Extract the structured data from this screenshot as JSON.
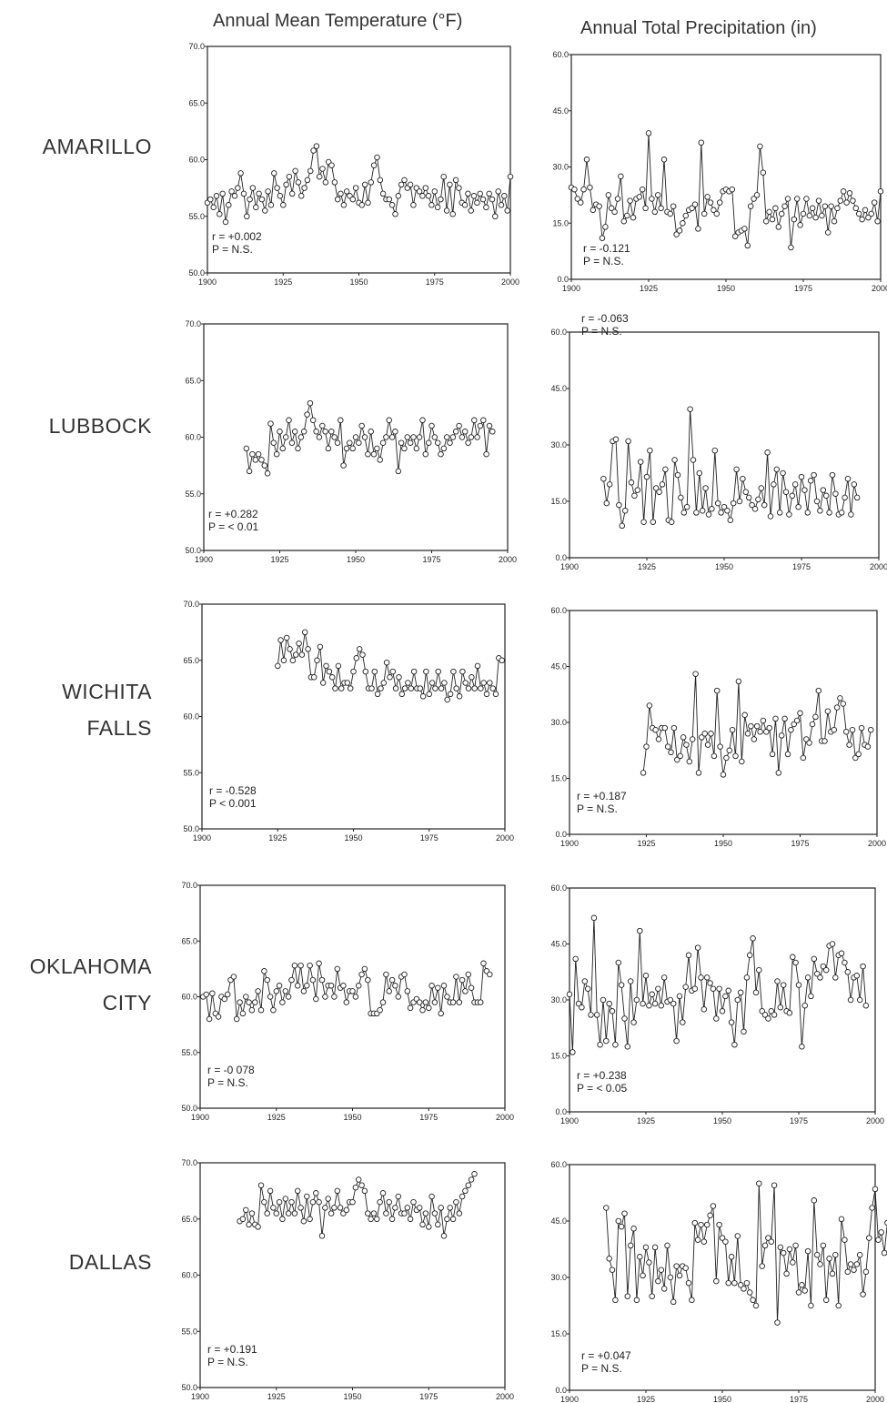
{
  "columns": {
    "temperature": "Annual  Mean Temperature  (°F)",
    "precipitation": "Annual  Total  Precipitation  (in)"
  },
  "cities": [
    "AMARILLO",
    "LUBBOCK",
    "WICHITA FALLS",
    "OKLAHOMA CITY",
    "DALLAS"
  ],
  "x_ticks": [
    "1900",
    "1925",
    "1950",
    "1975",
    "2000"
  ],
  "temp_yticks": [
    "70.0",
    "65.0",
    "60.0",
    "55.0",
    "50.0"
  ],
  "precip_yticks": [
    "60.0",
    "45.0",
    "30.0",
    "15.0",
    "0.0"
  ],
  "chart_data": [
    {
      "type": "line",
      "city": "AMARILLO",
      "variable": "temperature",
      "xlim": [
        1900,
        2000
      ],
      "ylim": [
        50,
        70
      ],
      "x_start": 1900,
      "stat_r": "r = +0.002",
      "stat_p": "P = N.S.",
      "values": [
        56.2,
        56.5,
        55.8,
        56.8,
        55.2,
        57.0,
        54.5,
        56.0,
        57.2,
        56.8,
        57.5,
        58.8,
        57.0,
        55.0,
        56.5,
        57.5,
        55.8,
        57.0,
        56.5,
        55.5,
        57.2,
        56.0,
        58.8,
        57.5,
        56.8,
        56.0,
        57.8,
        58.5,
        57.0,
        59.0,
        58.0,
        56.8,
        57.5,
        58.2,
        59.0,
        60.8,
        61.2,
        58.5,
        59.2,
        58.0,
        59.8,
        59.5,
        58.0,
        56.5,
        57.0,
        56.0,
        57.2,
        56.8,
        56.5,
        57.5,
        56.2,
        56.0,
        57.8,
        56.2,
        58.0,
        59.5,
        60.2,
        58.2,
        57.0,
        56.5,
        56.5,
        56.0,
        55.2,
        56.8,
        57.8,
        58.2,
        57.5,
        57.8,
        56.0,
        57.5,
        57.2,
        56.8,
        57.5,
        56.8,
        56.0,
        57.2,
        55.8,
        56.5,
        58.5,
        55.5,
        57.8,
        55.2,
        58.2,
        57.5,
        56.2,
        56.0,
        57.0,
        55.5,
        56.8,
        56.2,
        57.0,
        56.5,
        55.8,
        57.0,
        56.5,
        55.0,
        57.2,
        56.0,
        56.8,
        55.5,
        58.5
      ]
    },
    {
      "type": "line",
      "city": "AMARILLO",
      "variable": "precipitation",
      "xlim": [
        1900,
        2000
      ],
      "ylim": [
        0,
        60
      ],
      "x_start": 1900,
      "stat_r": "r = -0.121",
      "stat_p": "P = N.S.",
      "values": [
        24.5,
        24.0,
        21.5,
        20.5,
        24.0,
        32.0,
        24.5,
        18.5,
        20.0,
        19.5,
        11.0,
        14.0,
        22.5,
        19.0,
        18.0,
        21.5,
        27.5,
        15.5,
        17.0,
        21.0,
        16.5,
        21.5,
        22.0,
        24.0,
        19.0,
        39.0,
        21.5,
        18.0,
        22.5,
        19.0,
        32.0,
        18.0,
        17.5,
        19.5,
        12.0,
        13.0,
        15.0,
        17.0,
        18.5,
        19.0,
        20.0,
        13.5,
        36.5,
        17.5,
        22.0,
        20.5,
        18.5,
        17.5,
        20.5,
        23.5,
        24.0,
        23.5,
        24.0,
        11.5,
        12.5,
        13.0,
        13.5,
        9.0,
        19.5,
        21.5,
        22.5,
        35.5,
        28.5,
        15.5,
        18.0,
        16.0,
        19.0,
        14.0,
        17.5,
        19.5,
        21.5,
        8.5,
        16.0,
        21.5,
        14.5,
        17.5,
        21.5,
        17.0,
        19.0,
        16.5,
        21.0,
        17.0,
        19.5,
        12.5,
        19.5,
        15.5,
        19.0,
        21.0,
        23.5,
        20.5,
        23.0,
        21.0,
        19.0,
        17.5,
        16.0,
        18.5,
        16.5,
        17.5,
        20.5,
        15.5,
        23.5
      ]
    },
    {
      "type": "line",
      "city": "LUBBOCK",
      "variable": "temperature",
      "xlim": [
        1900,
        2000
      ],
      "ylim": [
        50,
        70
      ],
      "x_start": 1914,
      "stat_r": "r = +0.282",
      "stat_p": "P = < 0.01",
      "values": [
        59.0,
        57.0,
        58.5,
        58.0,
        58.5,
        58.0,
        57.5,
        56.8,
        61.2,
        59.5,
        58.5,
        60.5,
        59.0,
        60.0,
        61.5,
        59.5,
        60.5,
        59.0,
        60.0,
        60.5,
        62.0,
        63.0,
        61.5,
        60.5,
        60.0,
        61.0,
        60.5,
        59.0,
        60.5,
        60.0,
        59.5,
        61.5,
        57.5,
        59.0,
        59.5,
        59.0,
        60.0,
        59.5,
        61.0,
        60.0,
        58.5,
        60.5,
        58.5,
        59.0,
        58.0,
        59.5,
        60.0,
        61.5,
        60.0,
        60.5,
        57.0,
        59.5,
        59.0,
        60.0,
        59.5,
        60.0,
        59.0,
        60.0,
        61.5,
        58.5,
        59.5,
        61.0,
        60.0,
        59.5,
        58.5,
        59.0,
        60.0,
        59.5,
        60.0,
        60.5,
        61.0,
        60.0,
        60.5,
        59.5,
        60.0,
        61.5,
        60.0,
        61.0,
        61.5,
        58.5,
        61.0,
        60.5
      ]
    },
    {
      "type": "line",
      "city": "LUBBOCK",
      "variable": "precipitation",
      "xlim": [
        1900,
        2000
      ],
      "ylim": [
        0,
        60
      ],
      "x_start": 1911,
      "stat_r": "r = -0.063",
      "stat_p": "P = N.S.",
      "values": [
        21.0,
        14.5,
        19.5,
        31.0,
        31.5,
        14.0,
        8.5,
        12.5,
        31.0,
        20.0,
        16.5,
        18.0,
        25.5,
        9.5,
        21.5,
        28.5,
        9.5,
        18.5,
        17.5,
        19.5,
        23.5,
        10.0,
        9.5,
        26.0,
        22.0,
        16.0,
        12.0,
        13.5,
        39.5,
        26.0,
        12.0,
        22.5,
        12.5,
        18.5,
        11.5,
        13.0,
        28.5,
        14.5,
        12.0,
        13.5,
        12.5,
        10.0,
        14.5,
        23.5,
        15.0,
        21.0,
        17.5,
        16.0,
        14.0,
        13.0,
        15.5,
        18.5,
        14.0,
        28.0,
        11.0,
        19.5,
        23.5,
        12.0,
        22.5,
        17.5,
        11.5,
        16.5,
        19.5,
        13.5,
        21.5,
        18.0,
        12.0,
        20.5,
        22.0,
        15.0,
        12.5,
        18.0,
        16.5,
        12.0,
        22.0,
        17.0,
        11.5,
        12.0,
        16.0,
        21.0,
        11.5,
        19.5,
        16.0
      ]
    },
    {
      "type": "line",
      "city": "WICHITA FALLS",
      "variable": "temperature",
      "xlim": [
        1900,
        2000
      ],
      "ylim": [
        50,
        70
      ],
      "x_start": 1925,
      "stat_r": "r = -0.528",
      "stat_p": "P < 0.001",
      "values": [
        64.5,
        66.8,
        65.0,
        67.0,
        66.0,
        65.0,
        65.5,
        66.5,
        65.5,
        67.5,
        66.0,
        63.5,
        63.5,
        65.0,
        66.2,
        63.0,
        64.5,
        64.0,
        63.5,
        62.5,
        64.5,
        62.5,
        63.0,
        63.0,
        62.5,
        64.0,
        65.2,
        66.0,
        65.5,
        64.0,
        62.5,
        62.5,
        64.0,
        62.0,
        62.5,
        63.0,
        64.8,
        63.5,
        64.0,
        62.5,
        63.5,
        62.0,
        62.5,
        63.0,
        62.5,
        64.0,
        62.5,
        62.5,
        61.8,
        64.0,
        62.0,
        63.0,
        62.5,
        64.0,
        62.5,
        63.0,
        61.5,
        62.0,
        64.0,
        62.5,
        61.8,
        64.0,
        63.0,
        62.5,
        63.5,
        62.5,
        64.5,
        62.5,
        63.0,
        62.0,
        63.0,
        62.5,
        62.0,
        65.2,
        65.0
      ]
    },
    {
      "type": "line",
      "city": "WICHITA FALLS",
      "variable": "precipitation",
      "xlim": [
        1900,
        2000
      ],
      "ylim": [
        0,
        60
      ],
      "x_start": 1924,
      "stat_r": "r = +0.187",
      "stat_p": "P = N.S.",
      "values": [
        16.5,
        23.5,
        34.5,
        28.5,
        28.0,
        25.5,
        28.5,
        28.5,
        23.5,
        22.0,
        28.5,
        20.0,
        21.0,
        26.0,
        24.0,
        19.5,
        25.5,
        43.0,
        16.5,
        26.0,
        27.0,
        24.0,
        27.0,
        21.0,
        38.5,
        23.5,
        16.0,
        20.5,
        22.5,
        28.0,
        21.0,
        41.0,
        19.5,
        32.0,
        27.0,
        29.0,
        25.5,
        29.0,
        27.5,
        30.5,
        27.5,
        28.5,
        21.5,
        31.0,
        16.5,
        26.5,
        31.0,
        21.5,
        28.0,
        29.5,
        30.5,
        32.5,
        20.5,
        25.5,
        24.5,
        29.5,
        31.5,
        38.5,
        25.0,
        25.0,
        33.0,
        27.5,
        28.0,
        34.0,
        36.5,
        35.0,
        27.5,
        24.0,
        28.0,
        20.5,
        21.5,
        28.5,
        24.0,
        23.5,
        28.0
      ]
    },
    {
      "type": "line",
      "city": "OKLAHOMA CITY",
      "variable": "temperature",
      "xlim": [
        1900,
        2000
      ],
      "ylim": [
        50,
        70
      ],
      "x_start": 1901,
      "stat_r": "r = -0 078",
      "stat_p": "P = N.S.",
      "values": [
        60.0,
        60.2,
        58.0,
        60.3,
        58.5,
        58.2,
        60.0,
        59.8,
        60.2,
        61.5,
        61.8,
        58.0,
        59.5,
        58.5,
        60.0,
        59.5,
        58.8,
        59.5,
        60.5,
        58.8,
        62.3,
        61.5,
        60.0,
        58.8,
        60.5,
        61.0,
        59.5,
        60.5,
        60.0,
        61.5,
        62.8,
        61.0,
        62.8,
        60.5,
        61.0,
        62.8,
        61.5,
        59.8,
        63.0,
        61.5,
        60.0,
        61.0,
        61.0,
        60.0,
        62.5,
        60.8,
        61.0,
        59.5,
        60.5,
        60.5,
        60.0,
        61.0,
        62.0,
        62.5,
        61.5,
        58.5,
        58.5,
        58.5,
        58.8,
        59.5,
        62.0,
        60.5,
        61.5,
        61.0,
        60.0,
        61.8,
        62.0,
        60.5,
        59.0,
        59.5,
        59.8,
        59.5,
        58.8,
        59.5,
        59.0,
        61.0,
        59.5,
        60.8,
        58.5,
        61.0,
        60.0,
        59.5,
        59.5,
        61.8,
        59.5,
        61.5,
        60.5,
        62.0,
        60.8,
        59.5,
        59.5,
        59.5,
        63.0,
        62.3,
        62.0
      ]
    },
    {
      "type": "line",
      "city": "OKLAHOMA CITY",
      "variable": "precipitation",
      "xlim": [
        1900,
        2000
      ],
      "ylim": [
        0,
        60
      ],
      "x_start": 1900,
      "stat_r": "r = +0.238",
      "stat_p": "P = < 0.05",
      "values": [
        31.5,
        16.0,
        41.0,
        29.0,
        28.0,
        35.0,
        33.0,
        26.0,
        52.0,
        26.0,
        18.0,
        30.0,
        19.0,
        29.0,
        27.0,
        18.0,
        40.0,
        34.0,
        25.0,
        17.5,
        35.0,
        24.0,
        30.0,
        48.5,
        29.0,
        36.5,
        28.5,
        31.5,
        29.0,
        33.0,
        28.5,
        36.0,
        29.5,
        30.0,
        29.0,
        19.0,
        31.0,
        24.0,
        33.5,
        42.0,
        32.5,
        33.0,
        44.0,
        36.0,
        27.5,
        36.0,
        34.5,
        33.0,
        25.0,
        33.0,
        27.0,
        31.0,
        32.5,
        24.0,
        18.0,
        30.0,
        32.0,
        21.5,
        36.0,
        42.0,
        46.5,
        32.0,
        38.0,
        27.0,
        26.0,
        25.0,
        27.0,
        26.0,
        35.0,
        28.0,
        34.0,
        27.0,
        26.5,
        41.5,
        40.0,
        34.0,
        17.5,
        28.5,
        36.0,
        31.0,
        41.0,
        37.0,
        36.0,
        39.0,
        38.0,
        44.5,
        45.0,
        36.0,
        42.0,
        42.5,
        40.0,
        37.5,
        30.0,
        36.0,
        36.5,
        30.0,
        39.0,
        28.5
      ]
    },
    {
      "type": "line",
      "city": "DALLAS",
      "variable": "temperature",
      "xlim": [
        1900,
        2000
      ],
      "ylim": [
        50,
        70
      ],
      "x_start": 1913,
      "stat_r": "r = +0.191",
      "stat_p": "P = N.S.",
      "values": [
        64.8,
        65.0,
        65.8,
        64.5,
        65.5,
        64.5,
        64.3,
        68.0,
        66.5,
        65.5,
        67.5,
        66.0,
        65.5,
        66.5,
        65.0,
        66.8,
        65.5,
        66.5,
        65.5,
        67.5,
        66.0,
        64.8,
        67.0,
        65.0,
        66.5,
        67.3,
        66.5,
        63.5,
        66.0,
        66.8,
        65.5,
        66.0,
        67.5,
        66.0,
        65.5,
        65.8,
        66.5,
        66.5,
        67.8,
        68.5,
        68.0,
        67.5,
        65.5,
        65.0,
        65.5,
        65.0,
        66.5,
        67.3,
        65.5,
        66.5,
        65.0,
        66.0,
        67.0,
        65.5,
        65.5,
        66.0,
        65.0,
        66.5,
        65.8,
        66.0,
        64.5,
        65.5,
        64.3,
        67.0,
        65.5,
        64.5,
        66.0,
        63.5,
        65.0,
        66.0,
        65.0,
        66.5,
        65.5,
        67.0,
        67.5,
        68.0,
        68.5,
        69.0
      ]
    },
    {
      "type": "line",
      "city": "DALLAS",
      "variable": "precipitation",
      "xlim": [
        1900,
        2000
      ],
      "ylim": [
        0,
        60
      ],
      "x_start": 1912,
      "stat_r": "r = +0.047",
      "stat_p": "P = N.S.",
      "values": [
        48.5,
        35.0,
        32.0,
        24.0,
        45.0,
        43.5,
        47.0,
        25.0,
        38.5,
        43.0,
        24.0,
        35.5,
        30.5,
        38.0,
        34.0,
        25.0,
        38.0,
        29.0,
        32.0,
        27.0,
        38.5,
        30.0,
        23.5,
        33.0,
        30.5,
        33.0,
        32.5,
        28.5,
        24.0,
        44.5,
        40.0,
        44.0,
        39.5,
        44.0,
        46.5,
        49.0,
        29.0,
        44.0,
        40.5,
        39.5,
        28.5,
        35.5,
        28.5,
        41.0,
        28.0,
        27.0,
        28.5,
        26.0,
        24.0,
        22.5,
        55.0,
        33.0,
        38.5,
        40.5,
        39.5,
        54.5,
        18.0,
        38.0,
        36.5,
        31.0,
        37.5,
        34.0,
        38.5,
        26.0,
        28.0,
        26.5,
        37.0,
        22.5,
        50.5,
        36.0,
        33.5,
        38.5,
        24.0,
        35.0,
        31.0,
        36.0,
        22.5,
        45.5,
        40.0,
        31.5,
        33.5,
        32.0,
        33.5,
        36.0,
        25.5,
        31.5,
        40.5,
        48.5,
        53.5,
        40.0,
        42.0,
        36.5,
        44.5,
        36.5,
        35.0,
        32.0,
        29.5
      ]
    }
  ]
}
